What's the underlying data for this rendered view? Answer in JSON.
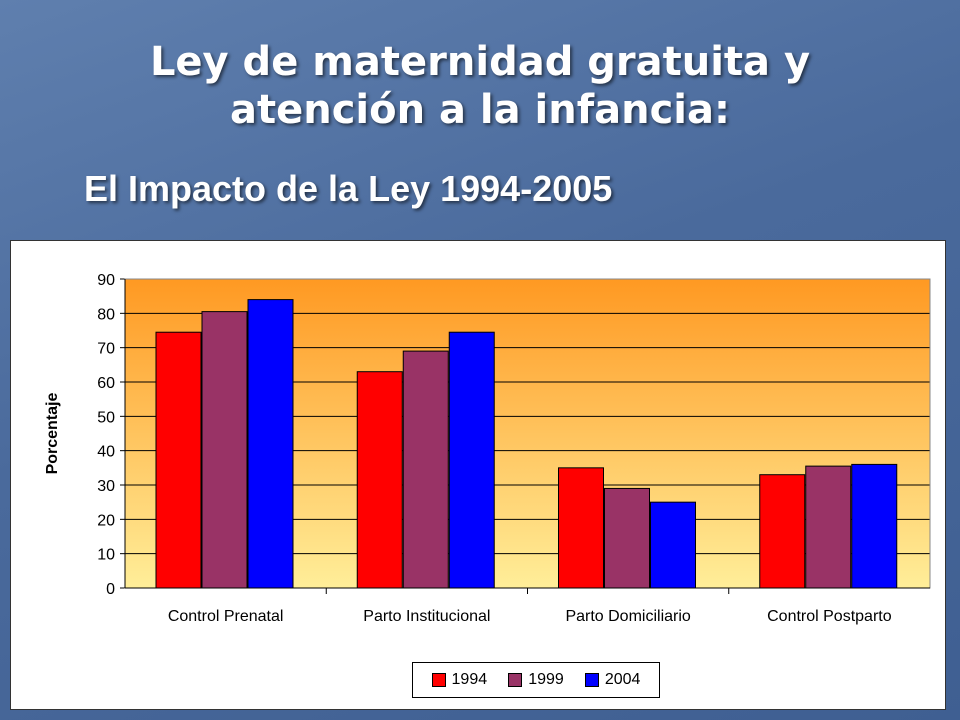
{
  "slide": {
    "title": "Ley de maternidad gratuita y atención a la infancia:",
    "subtitle": "El Impacto de la Ley  1994-2005"
  },
  "chart_data": {
    "type": "bar",
    "categories": [
      "Control Prenatal",
      "Parto Institucional",
      "Parto Domiciliario",
      "Control Postparto"
    ],
    "series": [
      {
        "name": "1994",
        "color": "#ff0000",
        "values": [
          74.5,
          63,
          35,
          33
        ]
      },
      {
        "name": "1999",
        "color": "#993366",
        "values": [
          80.5,
          69,
          29,
          35.5
        ]
      },
      {
        "name": "2004",
        "color": "#0000ff",
        "values": [
          84,
          74.5,
          25,
          36
        ]
      }
    ],
    "ylabel": "Porcentaje",
    "ylim": [
      0,
      90
    ],
    "yticks": [
      0,
      10,
      20,
      30,
      40,
      50,
      60,
      70,
      80,
      90
    ],
    "grid": true,
    "legend_position": "bottom",
    "plot_background": [
      "#ffee99",
      "#ff9922"
    ]
  }
}
